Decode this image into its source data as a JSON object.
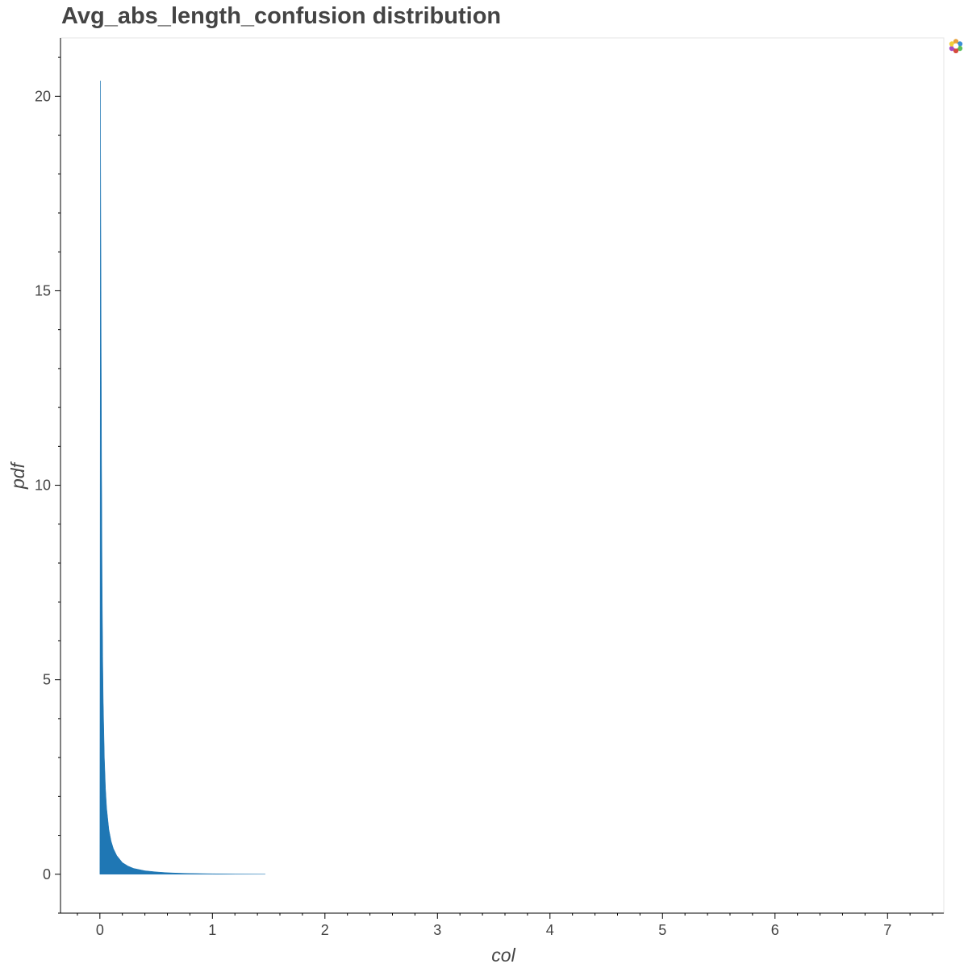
{
  "chart_data": {
    "type": "area",
    "title": "Avg_abs_length_confusion distribution",
    "xlabel": "col",
    "ylabel": "pdf",
    "xlim": [
      -0.35,
      7.5
    ],
    "ylim": [
      -1,
      21.5
    ],
    "x_ticks": [
      0,
      1,
      2,
      3,
      4,
      5,
      6,
      7
    ],
    "y_ticks": [
      0,
      5,
      10,
      15,
      20
    ],
    "grid": false,
    "color": "#1f77b4",
    "series": [
      {
        "x": [
          0.0,
          0.005,
          0.01,
          0.015,
          0.02,
          0.025,
          0.03,
          0.04,
          0.05,
          0.06,
          0.08,
          0.1,
          0.12,
          0.15,
          0.2,
          0.25,
          0.3,
          0.4,
          0.5,
          0.6,
          0.7,
          0.8,
          1.0,
          1.2,
          1.47
        ],
        "y": [
          0,
          20.4,
          15.0,
          10.5,
          7.5,
          5.6,
          4.4,
          3.0,
          2.2,
          1.7,
          1.15,
          0.85,
          0.66,
          0.48,
          0.3,
          0.21,
          0.15,
          0.09,
          0.06,
          0.04,
          0.028,
          0.02,
          0.012,
          0.006,
          0.002
        ]
      }
    ]
  },
  "toolbar": {
    "logo_icon": "bokeh-logo-icon"
  }
}
